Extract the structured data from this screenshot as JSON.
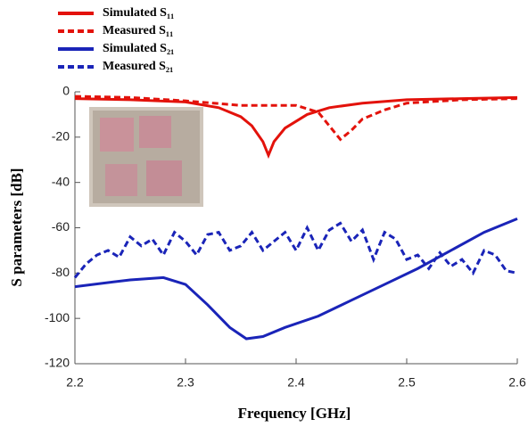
{
  "chart_data": {
    "type": "line",
    "xlabel": "Frequency [GHz]",
    "ylabel": "S parameters [dB]",
    "xlim": [
      2.2,
      2.6
    ],
    "xticks": [
      2.2,
      2.3,
      2.4,
      2.5,
      2.6
    ],
    "ylim": [
      -120,
      0
    ],
    "yticks": [
      -120,
      -100,
      -80,
      -60,
      -40,
      -20,
      0
    ],
    "series": [
      {
        "name": "Simulated S₁₁",
        "color": "#e3120b",
        "dash": false,
        "x": [
          2.2,
          2.25,
          2.3,
          2.33,
          2.35,
          2.36,
          2.37,
          2.375,
          2.38,
          2.39,
          2.41,
          2.43,
          2.46,
          2.5,
          2.55,
          2.6
        ],
        "values": [
          -3,
          -3.5,
          -4.5,
          -7,
          -11,
          -15,
          -22,
          -28,
          -22,
          -16,
          -10,
          -7,
          -5,
          -3.5,
          -3,
          -2.5
        ]
      },
      {
        "name": "Measured S₁₁",
        "color": "#e3120b",
        "dash": true,
        "x": [
          2.2,
          2.25,
          2.3,
          2.35,
          2.4,
          2.42,
          2.43,
          2.44,
          2.45,
          2.46,
          2.48,
          2.5,
          2.55,
          2.6
        ],
        "values": [
          -2,
          -2.5,
          -4,
          -6,
          -6,
          -9,
          -15,
          -21,
          -17,
          -12,
          -8,
          -5,
          -3.5,
          -3
        ]
      },
      {
        "name": "Simulated S₂₁",
        "color": "#1a24b8",
        "dash": false,
        "x": [
          2.2,
          2.25,
          2.28,
          2.3,
          2.32,
          2.34,
          2.355,
          2.37,
          2.39,
          2.42,
          2.45,
          2.48,
          2.51,
          2.54,
          2.57,
          2.6
        ],
        "values": [
          -86,
          -83,
          -82,
          -85,
          -94,
          -104,
          -109,
          -108,
          -104,
          -99,
          -92,
          -85,
          -78,
          -70,
          -62,
          -56
        ]
      },
      {
        "name": "Measured S₂₁",
        "color": "#1a24b8",
        "dash": true,
        "x": [
          2.2,
          2.21,
          2.22,
          2.23,
          2.24,
          2.25,
          2.26,
          2.27,
          2.28,
          2.29,
          2.3,
          2.31,
          2.32,
          2.33,
          2.34,
          2.35,
          2.36,
          2.37,
          2.38,
          2.39,
          2.4,
          2.41,
          2.42,
          2.43,
          2.44,
          2.45,
          2.46,
          2.47,
          2.48,
          2.49,
          2.5,
          2.51,
          2.52,
          2.53,
          2.54,
          2.55,
          2.56,
          2.57,
          2.58,
          2.59,
          2.6
        ],
        "values": [
          -82,
          -76,
          -72,
          -70,
          -73,
          -64,
          -68,
          -65,
          -72,
          -62,
          -66,
          -72,
          -63,
          -62,
          -70,
          -68,
          -62,
          -70,
          -66,
          -62,
          -70,
          -60,
          -70,
          -61,
          -58,
          -66,
          -61,
          -74,
          -62,
          -65,
          -74,
          -72,
          -78,
          -71,
          -77,
          -74,
          -80,
          -70,
          -72,
          -79,
          -80
        ]
      }
    ]
  }
}
